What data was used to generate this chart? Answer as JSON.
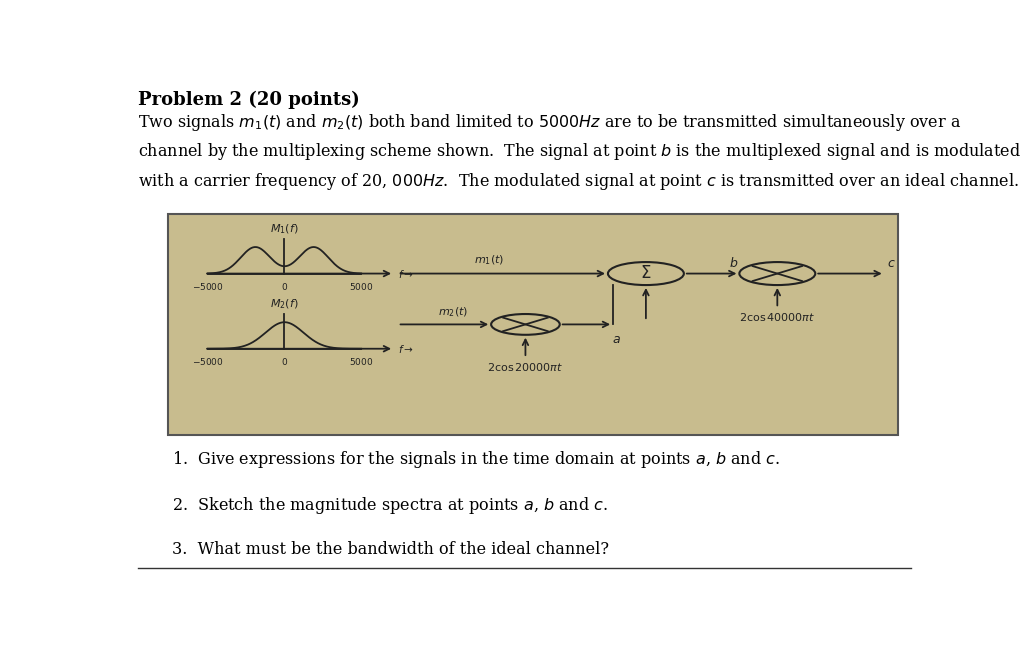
{
  "bg_color": "#ffffff",
  "diagram_bg": "#c8bc8e",
  "diagram_border": "#555555",
  "title": "Problem 2 (20 points)",
  "title_fontsize": 13,
  "body_fontsize": 11.5,
  "question_fontsize": 11.5,
  "question1": "1.  Give expressions for the signals in the time domain at points $a$, $b$ and $c$.",
  "question2": "2.  Sketch the magnitude spectra at points $a$, $b$ and $c$.",
  "question3": "3.  What must be the bandwidth of the ideal channel?"
}
